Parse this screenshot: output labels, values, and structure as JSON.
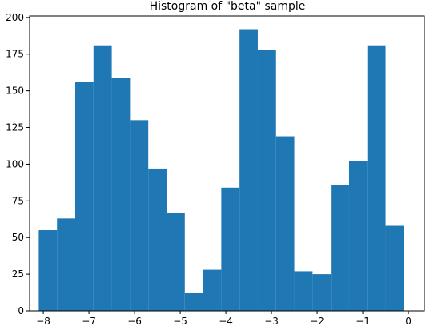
{
  "chart_data": {
    "type": "bar",
    "title": "Histogram of \"beta\" sample",
    "xlabel": "",
    "ylabel": "",
    "bar_color": "#1f77b4",
    "bin_width": 0.4,
    "bin_start": -8.1,
    "x": [
      -7.9,
      -7.5,
      -7.1,
      -6.7,
      -6.3,
      -5.9,
      -5.5,
      -5.1,
      -4.7,
      -4.3,
      -3.9,
      -3.5,
      -3.1,
      -2.7,
      -2.3,
      -1.9,
      -1.5,
      -1.1,
      -0.7,
      -0.3
    ],
    "values": [
      55,
      63,
      156,
      181,
      159,
      130,
      97,
      67,
      12,
      28,
      84,
      192,
      178,
      119,
      27,
      25,
      86,
      102,
      181,
      58
    ],
    "xlim": [
      -8.3,
      0.35
    ],
    "ylim": [
      0,
      201
    ],
    "xticks": [
      -8,
      -7,
      -6,
      -5,
      -4,
      -3,
      -2,
      -1,
      0
    ],
    "xtick_labels": [
      "−8",
      "−7",
      "−6",
      "−5",
      "−4",
      "−3",
      "−2",
      "−1",
      "0"
    ],
    "yticks": [
      0,
      25,
      50,
      75,
      100,
      125,
      150,
      175,
      200
    ],
    "ytick_labels": [
      "0",
      "25",
      "50",
      "75",
      "100",
      "125",
      "150",
      "175",
      "200"
    ],
    "grid": false,
    "legend": false
  }
}
